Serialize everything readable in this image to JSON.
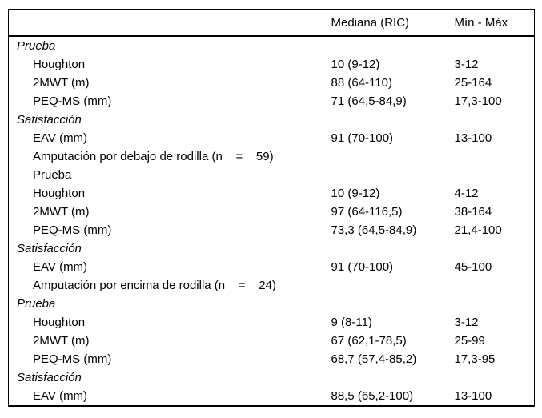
{
  "colors": {
    "background": "#ffffff",
    "text": "#000000",
    "rule": "#000000"
  },
  "table": {
    "columns": [
      "",
      "Mediana (RIC)",
      "Mín - Máx"
    ],
    "rows": [
      {
        "label": "Prueba",
        "italic": true,
        "indent": 0,
        "mediana": "",
        "minmax": ""
      },
      {
        "label": "Houghton",
        "italic": false,
        "indent": 1,
        "mediana": "10 (9-12)",
        "minmax": "3-12"
      },
      {
        "label": "2MWT (m)",
        "italic": false,
        "indent": 1,
        "mediana": "88 (64-110)",
        "minmax": "25-164"
      },
      {
        "label": "PEQ-MS (mm)",
        "italic": false,
        "indent": 1,
        "mediana": "71 (64,5-84,9)",
        "minmax": "17,3-100"
      },
      {
        "label": "Satisfacción",
        "italic": true,
        "indent": 0,
        "mediana": "",
        "minmax": ""
      },
      {
        "label": "EAV (mm)",
        "italic": false,
        "indent": 1,
        "mediana": "91 (70-100)",
        "minmax": "13-100"
      },
      {
        "label": "Amputación por debajo de rodilla (n    =    59)",
        "italic": false,
        "indent": 1,
        "mediana": "",
        "minmax": ""
      },
      {
        "label": "Prueba",
        "italic": false,
        "indent": 1,
        "mediana": "",
        "minmax": ""
      },
      {
        "label": "Houghton",
        "italic": false,
        "indent": 1,
        "mediana": "10 (9-12)",
        "minmax": "4-12"
      },
      {
        "label": "2MWT (m)",
        "italic": false,
        "indent": 1,
        "mediana": "97 (64-116,5)",
        "minmax": "38-164"
      },
      {
        "label": "PEQ-MS (mm)",
        "italic": false,
        "indent": 1,
        "mediana": "73,3 (64,5-84,9)",
        "minmax": "21,4-100"
      },
      {
        "label": "Satisfacción",
        "italic": true,
        "indent": 0,
        "mediana": "",
        "minmax": ""
      },
      {
        "label": "EAV (mm)",
        "italic": false,
        "indent": 1,
        "mediana": "91 (70-100)",
        "minmax": "45-100"
      },
      {
        "label": "Amputación por encima de rodilla (n    =    24)",
        "italic": false,
        "indent": 1,
        "mediana": "",
        "minmax": ""
      },
      {
        "label": "Prueba",
        "italic": true,
        "indent": 0,
        "mediana": "",
        "minmax": ""
      },
      {
        "label": "Houghton",
        "italic": false,
        "indent": 1,
        "mediana": "9 (8-11)",
        "minmax": "3-12"
      },
      {
        "label": "2MWT (m)",
        "italic": false,
        "indent": 1,
        "mediana": "67 (62,1-78,5)",
        "minmax": "25-99"
      },
      {
        "label": "PEQ-MS (mm)",
        "italic": false,
        "indent": 1,
        "mediana": "68,7 (57,4-85,2)",
        "minmax": "17,3-95"
      },
      {
        "label": "Satisfacción",
        "italic": true,
        "indent": 0,
        "mediana": "",
        "minmax": ""
      },
      {
        "label": "EAV (mm)",
        "italic": false,
        "indent": 1,
        "mediana": "88,5 (65,2-100)",
        "minmax": "13-100"
      }
    ]
  }
}
